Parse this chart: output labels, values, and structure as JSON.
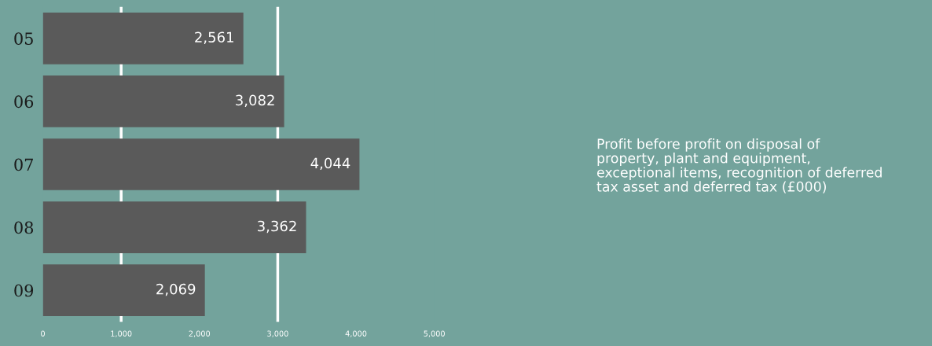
{
  "chart_data": {
    "type": "bar",
    "orientation": "horizontal",
    "categories": [
      "05",
      "06",
      "07",
      "08",
      "09"
    ],
    "values": [
      2561,
      3082,
      4044,
      3362,
      2069
    ],
    "value_labels": [
      "2,561",
      "3,082",
      "4,044",
      "3,362",
      "2,069"
    ],
    "color": "#5a5a5a",
    "xlim": [
      0,
      5000
    ],
    "xticks": [
      0,
      {
        "value": 1000,
        "label": "1,000"
      },
      {
        "value": 2000,
        "label": "2,000"
      },
      {
        "value": 3000,
        "label": "3,000"
      },
      {
        "value": 4000,
        "label": "4,000"
      },
      {
        "value": 5000,
        "label": "5,000"
      }
    ],
    "ref_lines": [
      {
        "axis": "x",
        "value": 1000,
        "color": "#ffffff"
      },
      {
        "axis": "x",
        "value": 3000,
        "color": "#ffffff"
      }
    ],
    "grid": false,
    "legend": false,
    "annotations": [
      "Profit before profit on disposal of property, plant and equipment, exceptional items, recognition of deferred tax asset and deferred tax (£000)"
    ]
  }
}
